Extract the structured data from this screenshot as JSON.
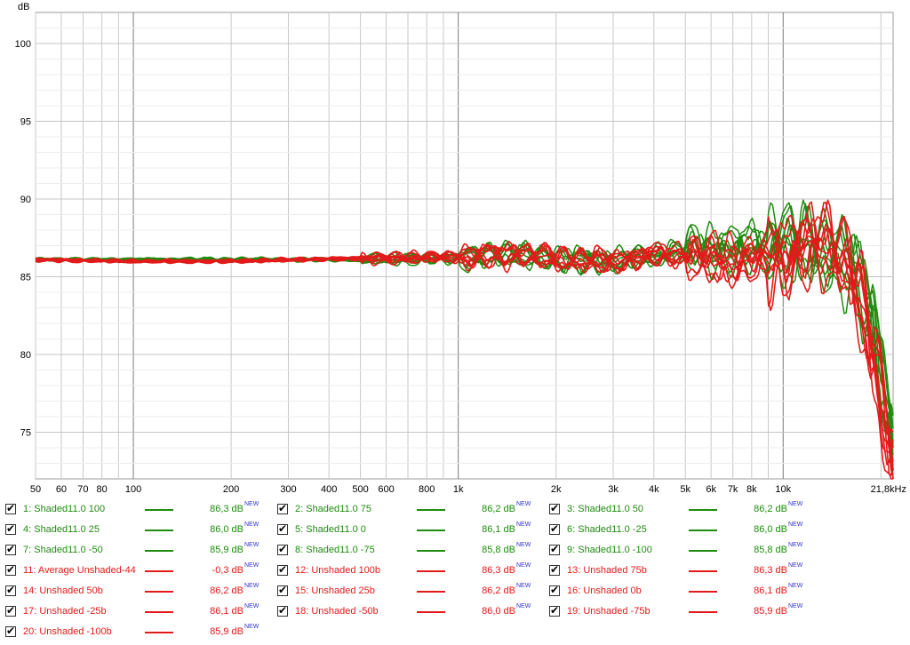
{
  "chart_data": {
    "type": "line",
    "title": "",
    "xlabel": "",
    "ylabel": "dB",
    "x_scale": "log",
    "xlim": [
      50,
      21800
    ],
    "ylim": [
      72,
      102
    ],
    "x_ticks": [
      {
        "v": 50,
        "label": "50"
      },
      {
        "v": 60,
        "label": "60"
      },
      {
        "v": 70,
        "label": "70"
      },
      {
        "v": 80,
        "label": "80"
      },
      {
        "v": 100,
        "label": "100"
      },
      {
        "v": 200,
        "label": "200"
      },
      {
        "v": 300,
        "label": "300"
      },
      {
        "v": 400,
        "label": "400"
      },
      {
        "v": 500,
        "label": "500"
      },
      {
        "v": 600,
        "label": "600"
      },
      {
        "v": 800,
        "label": "800"
      },
      {
        "v": 1000,
        "label": "1k"
      },
      {
        "v": 2000,
        "label": "2k"
      },
      {
        "v": 3000,
        "label": "3k"
      },
      {
        "v": 4000,
        "label": "4k"
      },
      {
        "v": 5000,
        "label": "5k"
      },
      {
        "v": 6000,
        "label": "6k"
      },
      {
        "v": 7000,
        "label": "7k"
      },
      {
        "v": 8000,
        "label": "8k"
      },
      {
        "v": 10000,
        "label": "10k"
      },
      {
        "v": 21800,
        "label": "21,8kHz"
      }
    ],
    "y_ticks": [
      75,
      80,
      85,
      90,
      95,
      100
    ],
    "grid": true,
    "legend_position": "bottom",
    "series_colors": {
      "green": "#1e8c0e",
      "red": "#e31a1a"
    },
    "series": [
      {
        "name": "1: Shaded11.0 100",
        "value": "86,3 dB",
        "color": "#1e8c0e"
      },
      {
        "name": "2: Shaded11.0 75",
        "value": "86,2 dB",
        "color": "#1e8c0e"
      },
      {
        "name": "3: Shaded11.0 50",
        "value": "86,2 dB",
        "color": "#1e8c0e"
      },
      {
        "name": "4: Shaded11.0 25",
        "value": "86,0 dB",
        "color": "#1e8c0e"
      },
      {
        "name": "5: Shaded11.0 0",
        "value": "86,1 dB",
        "color": "#1e8c0e"
      },
      {
        "name": "6: Shaded11.0 -25",
        "value": "86,0 dB",
        "color": "#1e8c0e"
      },
      {
        "name": "7: Shaded11.0 -50",
        "value": "85,9 dB",
        "color": "#1e8c0e"
      },
      {
        "name": "8: Shaded11.0 -75",
        "value": "85,8 dB",
        "color": "#1e8c0e"
      },
      {
        "name": "9: Shaded11.0 -100",
        "value": "85,8 dB",
        "color": "#1e8c0e"
      },
      {
        "name": "11: Average Unshaded-44",
        "value": "-0,3 dB",
        "color": "#e31a1a"
      },
      {
        "name": "12: Unshaded 100b",
        "value": "86,3 dB",
        "color": "#e31a1a"
      },
      {
        "name": "13: Unshaded 75b",
        "value": "86,3 dB",
        "color": "#e31a1a"
      },
      {
        "name": "14: Unshaded 50b",
        "value": "86,2 dB",
        "color": "#e31a1a"
      },
      {
        "name": "15: Unshaded 25b",
        "value": "86,2 dB",
        "color": "#e31a1a"
      },
      {
        "name": "16: Unshaded 0b",
        "value": "86,1 dB",
        "color": "#e31a1a"
      },
      {
        "name": "17: Unshaded -25b",
        "value": "86,1 dB",
        "color": "#e31a1a"
      },
      {
        "name": "18: Unshaded -50b",
        "value": "86,0 dB",
        "color": "#e31a1a"
      },
      {
        "name": "19: Unshaded -75b",
        "value": "85,9 dB",
        "color": "#e31a1a"
      },
      {
        "name": "20: Unshaded -100b",
        "value": "85,9 dB",
        "color": "#e31a1a"
      }
    ],
    "value_badge": "NEW",
    "approx_curve_points": {
      "x": [
        50,
        100,
        200,
        500,
        1000,
        1500,
        2000,
        3000,
        4000,
        5000,
        7000,
        10000,
        13000,
        16000,
        19000,
        21800
      ],
      "green": [
        86.1,
        86.1,
        86.1,
        86.1,
        86.2,
        86.4,
        86.1,
        86.0,
        86.3,
        86.6,
        86.8,
        87.0,
        86.5,
        86.0,
        82.0,
        74.0
      ],
      "red": [
        86.1,
        86.0,
        86.0,
        86.2,
        86.3,
        86.5,
        86.2,
        86.0,
        86.5,
        86.4,
        86.0,
        86.5,
        87.5,
        86.0,
        80.0,
        73.0
      ]
    }
  }
}
